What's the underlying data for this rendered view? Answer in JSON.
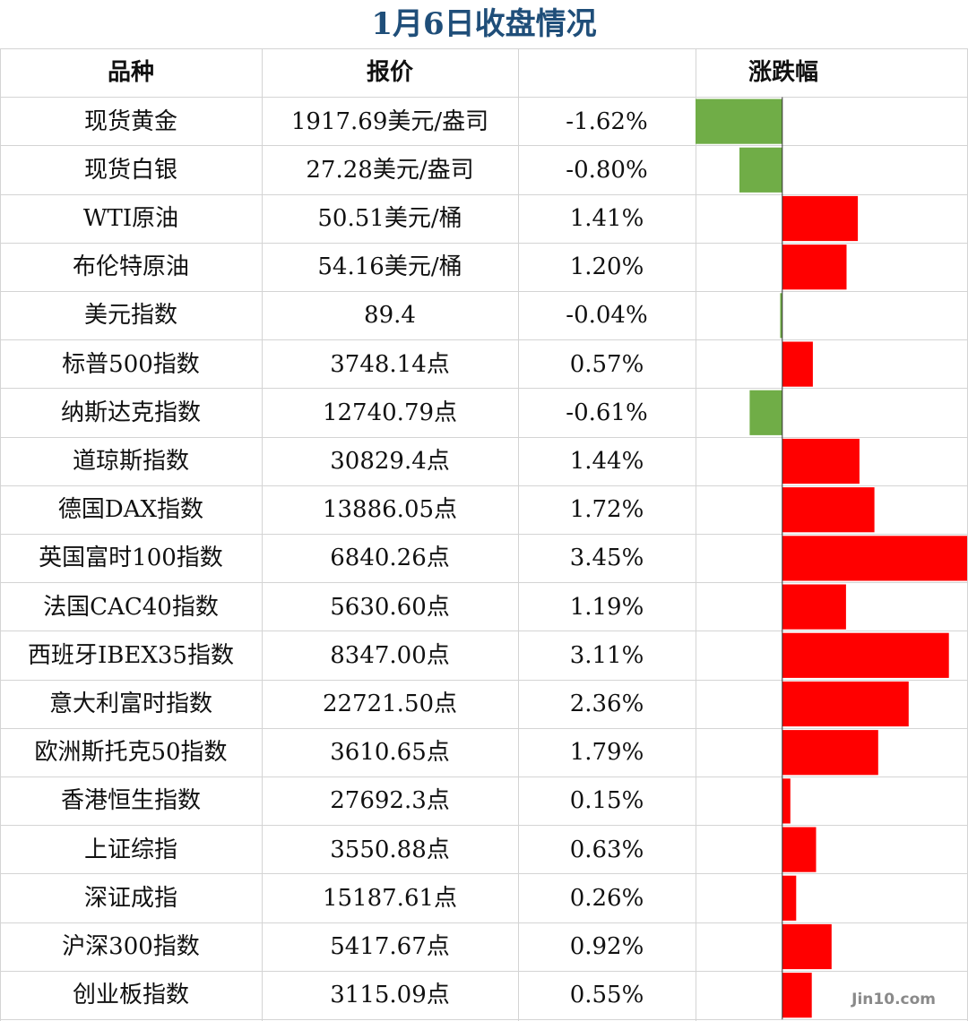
{
  "title": "1月6日收盘情况",
  "watermark": "Jin10.com",
  "colors": {
    "up": "#ff0000",
    "down": "#70ad47",
    "title": "#1f4e79"
  },
  "table": {
    "headers": {
      "name": "品种",
      "price": "报价",
      "change": "涨跌幅"
    },
    "rows": [
      {
        "name": "现货黄金",
        "price": "1917.69美元/盎司",
        "change": "-1.62%"
      },
      {
        "name": "现货白银",
        "price": "27.28美元/盎司",
        "change": "-0.80%"
      },
      {
        "name": "WTI原油",
        "price": "50.51美元/桶",
        "change": "1.41%"
      },
      {
        "name": "布伦特原油",
        "price": "54.16美元/桶",
        "change": "1.20%"
      },
      {
        "name": "美元指数",
        "price": "89.4",
        "change": "-0.04%"
      },
      {
        "name": "标普500指数",
        "price": "3748.14点",
        "change": "0.57%"
      },
      {
        "name": "纳斯达克指数",
        "price": "12740.79点",
        "change": "-0.61%"
      },
      {
        "name": "道琼斯指数",
        "price": "30829.4点",
        "change": "1.44%"
      },
      {
        "name": "德国DAX指数",
        "price": "13886.05点",
        "change": "1.72%"
      },
      {
        "name": "英国富时100指数",
        "price": "6840.26点",
        "change": "3.45%"
      },
      {
        "name": "法国CAC40指数",
        "price": "5630.60点",
        "change": "1.19%"
      },
      {
        "name": "西班牙IBEX35指数",
        "price": "8347.00点",
        "change": "3.11%"
      },
      {
        "name": "意大利富时指数",
        "price": "22721.50点",
        "change": "2.36%"
      },
      {
        "name": "欧洲斯托克50指数",
        "price": "3610.65点",
        "change": "1.79%"
      },
      {
        "name": "香港恒生指数",
        "price": "27692.3点",
        "change": "0.15%"
      },
      {
        "name": "上证综指",
        "price": "3550.88点",
        "change": "0.63%"
      },
      {
        "name": "深证成指",
        "price": "15187.61点",
        "change": "0.26%"
      },
      {
        "name": "沪深300指数",
        "price": "5417.67点",
        "change": "0.92%"
      },
      {
        "name": "创业板指数",
        "price": "3115.09点",
        "change": "0.55%"
      }
    ]
  },
  "chart_data": {
    "type": "bar",
    "orientation": "horizontal",
    "title": "",
    "xlabel": "",
    "ylabel": "",
    "categories": [
      "现货黄金",
      "现货白银",
      "WTI原油",
      "布伦特原油",
      "美元指数",
      "标普500指数",
      "纳斯达克指数",
      "道琼斯指数",
      "德国DAX指数",
      "英国富时100指数",
      "法国CAC40指数",
      "西班牙IBEX35指数",
      "意大利富时指数",
      "欧洲斯托克50指数",
      "香港恒生指数",
      "上证综指",
      "深证成指",
      "沪深300指数",
      "创业板指数"
    ],
    "values": [
      -1.62,
      -0.8,
      1.41,
      1.2,
      -0.04,
      0.57,
      -0.61,
      1.44,
      1.72,
      3.45,
      1.19,
      3.11,
      2.36,
      1.79,
      0.15,
      0.63,
      0.26,
      0.92,
      0.55
    ],
    "unit": "%",
    "xlim": [
      -1.62,
      3.45
    ]
  }
}
